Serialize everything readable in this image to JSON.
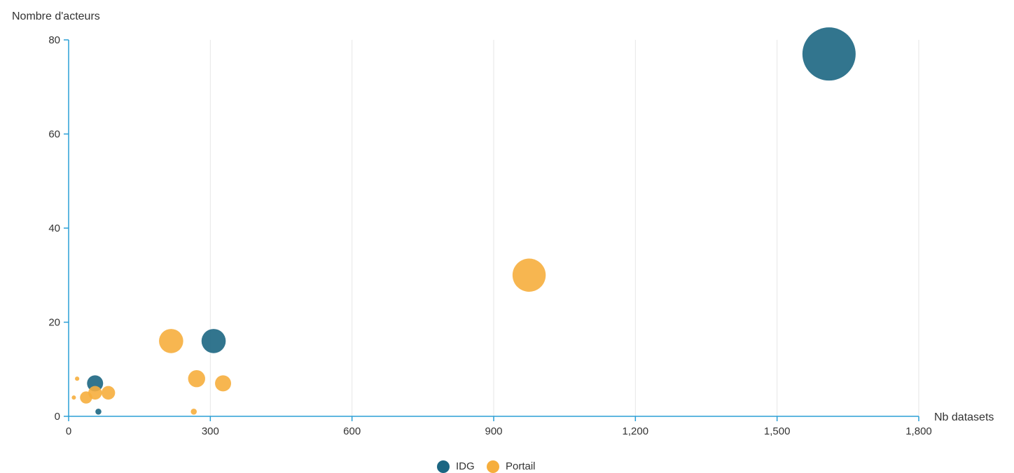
{
  "chart_data": {
    "type": "scatter",
    "xlabel": "Nb datasets",
    "ylabel": "Nombre d'acteurs",
    "xlim": [
      0,
      1800
    ],
    "ylim": [
      0,
      80
    ],
    "x_ticks": [
      "0",
      "300",
      "600",
      "900",
      "1,200",
      "1,500",
      "1,800"
    ],
    "y_ticks": [
      "0",
      "20",
      "40",
      "60",
      "80"
    ],
    "grid": {
      "vertical": true,
      "horizontal": false
    },
    "legend": {
      "placement": "bottom-center"
    },
    "series": [
      {
        "name": "IDG",
        "color": "#1c6682",
        "points": [
          {
            "x": 1610,
            "y": 77,
            "size": 77
          },
          {
            "x": 307,
            "y": 16,
            "size": 16
          },
          {
            "x": 56,
            "y": 7,
            "size": 7
          },
          {
            "x": 63,
            "y": 1,
            "size": 1
          }
        ]
      },
      {
        "name": "Portail",
        "color": "#f6ae3d",
        "points": [
          {
            "x": 975,
            "y": 30,
            "size": 30
          },
          {
            "x": 217,
            "y": 16,
            "size": 16
          },
          {
            "x": 271,
            "y": 8,
            "size": 8
          },
          {
            "x": 327,
            "y": 7,
            "size": 7
          },
          {
            "x": 265,
            "y": 1,
            "size": 1
          },
          {
            "x": 84,
            "y": 5,
            "size": 5
          },
          {
            "x": 56,
            "y": 5,
            "size": 5
          },
          {
            "x": 37,
            "y": 4,
            "size": 4
          },
          {
            "x": 18,
            "y": 8,
            "size": 0.5
          },
          {
            "x": 11,
            "y": 4,
            "size": 0.3
          }
        ]
      }
    ]
  }
}
